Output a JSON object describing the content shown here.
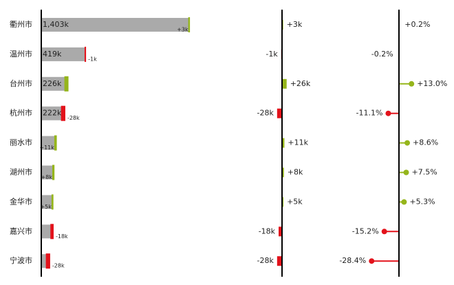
{
  "chart_data": [
    {
      "type": "hbar",
      "categories": [
        "衢州市",
        "温州市",
        "台州市",
        "杭州市",
        "丽水市",
        "湖州市",
        "金华市",
        "嘉兴市",
        "宁波市"
      ],
      "values": [
        1403,
        419,
        226,
        222,
        130,
        111,
        104,
        111,
        78
      ],
      "value_labels": [
        "1,403k",
        "419k",
        "226k",
        "222k",
        null,
        null,
        null,
        null,
        null
      ],
      "color": "#aaaaaa"
    },
    {
      "type": "variance",
      "values": [
        3,
        -1,
        26,
        -28,
        11,
        8,
        5,
        -18,
        -28
      ],
      "value_labels": [
        "+3k",
        "-1k",
        "+26k",
        "-28k",
        "+11k",
        "+8k",
        "+5k",
        "-18k",
        "-28k"
      ],
      "positive_color": "#95b51b",
      "negative_color": "#e3121b"
    },
    {
      "type": "pin",
      "values": [
        0.2,
        -0.2,
        13.0,
        -11.1,
        8.6,
        7.5,
        5.3,
        -15.2,
        -28.4
      ],
      "value_labels": [
        "+0.2%",
        "-0.2%",
        "+13.0%",
        "-11.1%",
        "+8.6%",
        "+7.5%",
        "+5.3%",
        "-15.2%",
        "-28.4%"
      ],
      "positive_color": "#95b51b",
      "negative_color": "#e3121b"
    }
  ]
}
